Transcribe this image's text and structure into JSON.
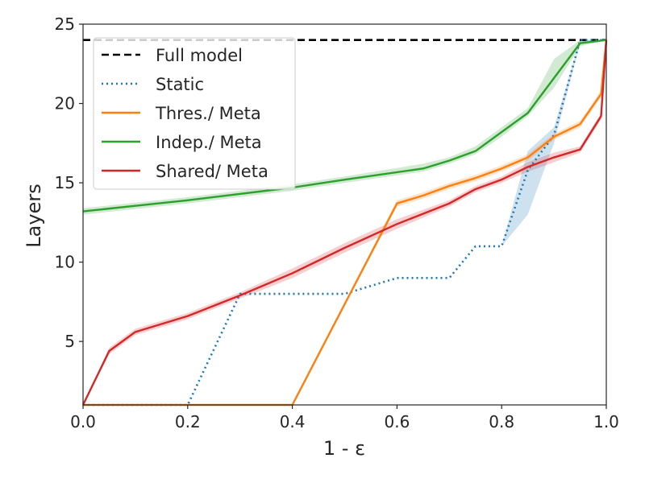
{
  "chart_data": {
    "type": "line",
    "xlabel": "1 - ε",
    "ylabel": "Layers",
    "xlim": [
      0.0,
      1.0
    ],
    "ylim": [
      1.0,
      25.0
    ],
    "xticks": [
      0.0,
      0.2,
      0.4,
      0.6,
      0.8,
      1.0
    ],
    "xtick_labels": [
      "0.0",
      "0.2",
      "0.4",
      "0.6",
      "0.8",
      "1.0"
    ],
    "yticks": [
      5,
      10,
      15,
      20,
      25
    ],
    "ytick_labels": [
      "5",
      "10",
      "15",
      "20",
      "25"
    ],
    "grid": false,
    "legend_position": "upper-left",
    "series": [
      {
        "name": "Full model",
        "color": "#000000",
        "style": "dashed",
        "x": [
          0.0,
          1.0
        ],
        "y": [
          24,
          24
        ]
      },
      {
        "name": "Static",
        "color": "#1f77b4",
        "style": "dotted",
        "x": [
          0.0,
          0.2,
          0.3,
          0.4,
          0.5,
          0.6,
          0.7,
          0.75,
          0.8,
          0.85,
          0.9,
          0.95,
          1.0
        ],
        "y": [
          1,
          1,
          8,
          8,
          8,
          9,
          9,
          11,
          11,
          15.8,
          18,
          24,
          24
        ],
        "band_lower": [
          1,
          1,
          8,
          8,
          8,
          9,
          9,
          11,
          11,
          13,
          17.5,
          23.8,
          24
        ],
        "band_upper": [
          1,
          1,
          8,
          8,
          8,
          9,
          9,
          11,
          11,
          17,
          18.5,
          24,
          24
        ]
      },
      {
        "name": "Thres./ Meta",
        "color": "#ff7f0e",
        "style": "solid",
        "x": [
          0.0,
          0.4,
          0.6,
          0.65,
          0.7,
          0.75,
          0.8,
          0.85,
          0.9,
          0.95,
          0.99,
          1.0
        ],
        "y": [
          1,
          1,
          13.7,
          14.2,
          14.8,
          15.3,
          15.9,
          16.6,
          17.9,
          18.7,
          20.6,
          24
        ],
        "band_lower": [
          1,
          1,
          13.5,
          14.0,
          14.6,
          15.1,
          15.7,
          16.4,
          17.7,
          18.5,
          20.4,
          24
        ],
        "band_upper": [
          1,
          1,
          13.9,
          14.4,
          15.0,
          15.5,
          16.1,
          16.8,
          18.1,
          18.9,
          20.8,
          24
        ]
      },
      {
        "name": "Indep./ Meta",
        "color": "#2ca02c",
        "style": "solid",
        "x": [
          0.0,
          0.2,
          0.4,
          0.5,
          0.65,
          0.7,
          0.75,
          0.8,
          0.85,
          0.9,
          0.95,
          1.0
        ],
        "y": [
          13.2,
          13.9,
          14.7,
          15.2,
          15.9,
          16.4,
          17.0,
          18.2,
          19.4,
          21.6,
          23.8,
          24
        ],
        "band_lower": [
          13.0,
          13.7,
          14.5,
          15.0,
          15.7,
          16.2,
          16.8,
          17.9,
          19.2,
          21.0,
          23.6,
          24
        ],
        "band_upper": [
          13.4,
          14.1,
          14.9,
          15.4,
          16.2,
          16.6,
          17.3,
          18.5,
          19.7,
          22.8,
          24.0,
          24
        ]
      },
      {
        "name": "Shared/ Meta",
        "color": "#d62728",
        "style": "solid",
        "x": [
          0.0,
          0.05,
          0.1,
          0.2,
          0.3,
          0.4,
          0.5,
          0.6,
          0.7,
          0.75,
          0.8,
          0.85,
          0.9,
          0.95,
          0.99,
          1.0
        ],
        "y": [
          1,
          4.4,
          5.6,
          6.6,
          7.9,
          9.3,
          10.9,
          12.4,
          13.7,
          14.6,
          15.2,
          16.0,
          16.6,
          17.1,
          19.2,
          24
        ],
        "band_lower": [
          1,
          4.2,
          5.4,
          6.4,
          7.7,
          9.0,
          10.6,
          12.1,
          13.5,
          14.4,
          15.0,
          15.7,
          16.3,
          16.9,
          19.0,
          24
        ],
        "band_upper": [
          1,
          4.6,
          5.8,
          6.8,
          8.1,
          9.6,
          11.2,
          12.7,
          13.9,
          14.8,
          15.4,
          16.3,
          16.9,
          17.3,
          19.4,
          24
        ]
      }
    ]
  }
}
